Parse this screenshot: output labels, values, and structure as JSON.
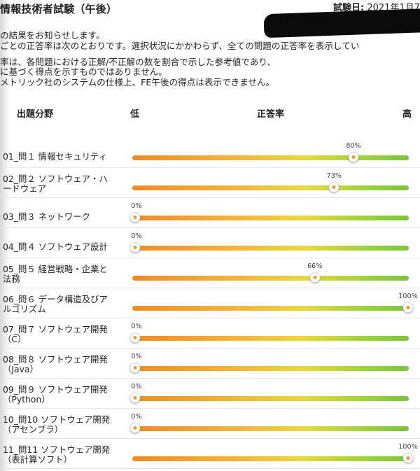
{
  "header": {
    "title": "情報技術者試験（午後）",
    "exam_date_label": "試験日:",
    "exam_date_value": "2021年1月7"
  },
  "intro": {
    "lines": [
      "の結果をお知らせします。",
      "ごとの正答率は次のとおりです。選択状況にかかわらず、全ての問題の正答率を表示してい",
      "率は、各問題における正解/不正解の数を割合で示した参考値であり、",
      "に基づく得点を示すものではありません。",
      "メトリック社のシステムの仕様上、FE午後の得点は表示できません。"
    ]
  },
  "table_header": {
    "field": "出題分野",
    "low": "低",
    "rate": "正答率",
    "high": "高"
  },
  "rows": [
    {
      "label": [
        "01_問１ 情報セキュリティ"
      ],
      "percent": 80,
      "percent_label": "80%"
    },
    {
      "label": [
        "02_問２ ソフトウェア・ハ",
        "ードウェア"
      ],
      "percent": 73,
      "percent_label": "73%"
    },
    {
      "label": [
        "03_問３ ネットワーク"
      ],
      "percent": 0,
      "percent_label": "0%"
    },
    {
      "label": [
        "04_問４ ソフトウェア設計"
      ],
      "percent": 0,
      "percent_label": "0%"
    },
    {
      "label": [
        "05_問５ 経営戦略・企業と",
        "法務"
      ],
      "percent": 66,
      "percent_label": "66%"
    },
    {
      "label": [
        "06_問６ データ構造及びア",
        "ルゴリズム"
      ],
      "percent": 100,
      "percent_label": "100%"
    },
    {
      "label": [
        "07_問７ ソフトウェア開発",
        "（C）"
      ],
      "percent": 0,
      "percent_label": "0%"
    },
    {
      "label": [
        "08_問８ ソフトウェア開発",
        "（Java）"
      ],
      "percent": 0,
      "percent_label": "0%"
    },
    {
      "label": [
        "09_問９ ソフトウェア開発",
        "（Python）"
      ],
      "percent": 0,
      "percent_label": "0%"
    },
    {
      "label": [
        "10_問10 ソフトウェア開発",
        "（アセンブラ）"
      ],
      "percent": 0,
      "percent_label": "0%"
    },
    {
      "label": [
        "11_問11 ソフトウェア開発",
        "（表計算ソフト）"
      ],
      "percent": 100,
      "percent_label": "100%"
    }
  ],
  "colors": {
    "bar_low": "#f08a24",
    "bar_mid": "#ead83a",
    "bar_high": "#7ac53a",
    "thumb_dot": "#f09a20"
  }
}
